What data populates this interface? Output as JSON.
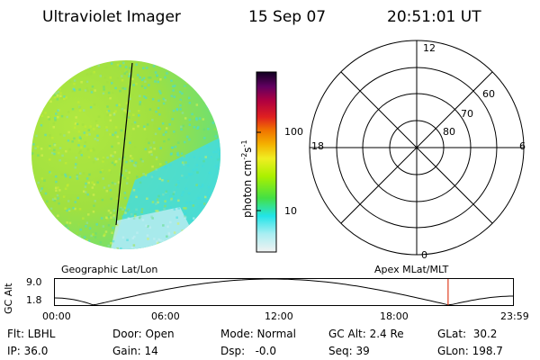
{
  "header": {
    "instrument": "Ultraviolet Imager",
    "date": "15 Sep 07",
    "time": "20:51:01 UT"
  },
  "colorbar": {
    "label": "photon cm",
    "label_exp1": "-2",
    "label_s": "s",
    "label_exp2": "-1",
    "ticks": [
      "100",
      "10"
    ]
  },
  "polar_plot": {
    "clock_labels": {
      "top": "12",
      "left": "18",
      "right": "6",
      "bottom": "0"
    },
    "ring_labels": [
      "60",
      "70",
      "80"
    ]
  },
  "orbit_panel": {
    "left_title": "Geographic Lat/Lon",
    "right_title": "Apex MLat/MLT",
    "yaxis_title": "GC Alt",
    "y_ticks": [
      "9.0",
      "1.8"
    ],
    "x_ticks": [
      "00:00",
      "06:00",
      "12:00",
      "18:00",
      "23:59"
    ],
    "current_time_fraction": 0.8576
  },
  "info": {
    "flt": "Flt: LBHL",
    "ip": "IP: 36.0",
    "door": "Door: Open",
    "gain": "Gain: 14",
    "mode": "Mode: Normal",
    "dsp": "Dsp:   -0.0",
    "gcalt": "GC Alt: 2.4 Re",
    "seq": "Seq: 39",
    "glat": "GLat:  30.2",
    "glon": "GLon: 198.7"
  },
  "colors": {
    "colorbar_stops": [
      "#f2f2f2",
      "#aaeef2",
      "#22e4e8",
      "#44e044",
      "#aaf000",
      "#f0ee22",
      "#f4b000",
      "#f07000",
      "#e02020",
      "#b00040",
      "#600060",
      "#100020"
    ],
    "earth_dominant": "#a0e040",
    "earth_secondary": "#40dde0",
    "terminator": "#000000",
    "time_marker": "#e04020"
  }
}
